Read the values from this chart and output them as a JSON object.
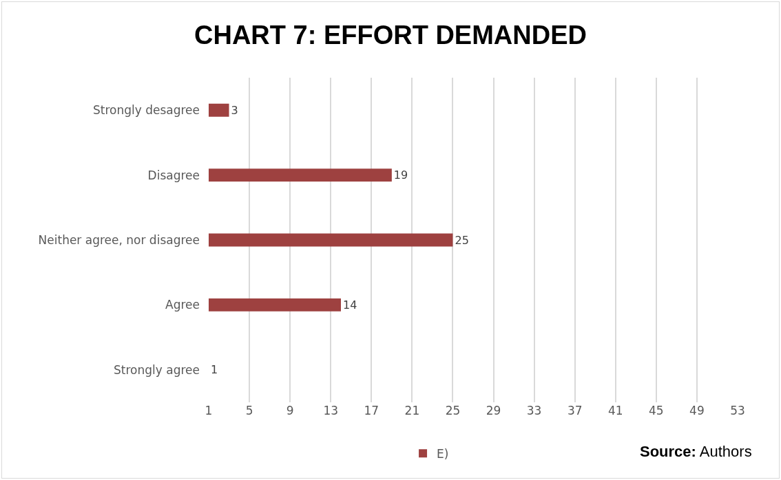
{
  "chart_data": {
    "type": "bar",
    "orientation": "horizontal",
    "title": "CHART 7: EFFORT DEMANDED",
    "categories": [
      "Strongly desagree",
      "Disagree",
      "Neither agree, nor disagree",
      "Agree",
      "Strongly agree"
    ],
    "series": [
      {
        "name": "E)",
        "color": "#9e4140",
        "values": [
          3,
          19,
          25,
          14,
          1
        ]
      }
    ],
    "data_labels": true,
    "xlim": [
      1,
      53
    ],
    "xticks": [
      1,
      5,
      9,
      13,
      17,
      21,
      25,
      29,
      33,
      37,
      41,
      45,
      49,
      53
    ],
    "grid": "x",
    "legend": "bottom",
    "annotations": [
      "Source: Authors"
    ]
  }
}
